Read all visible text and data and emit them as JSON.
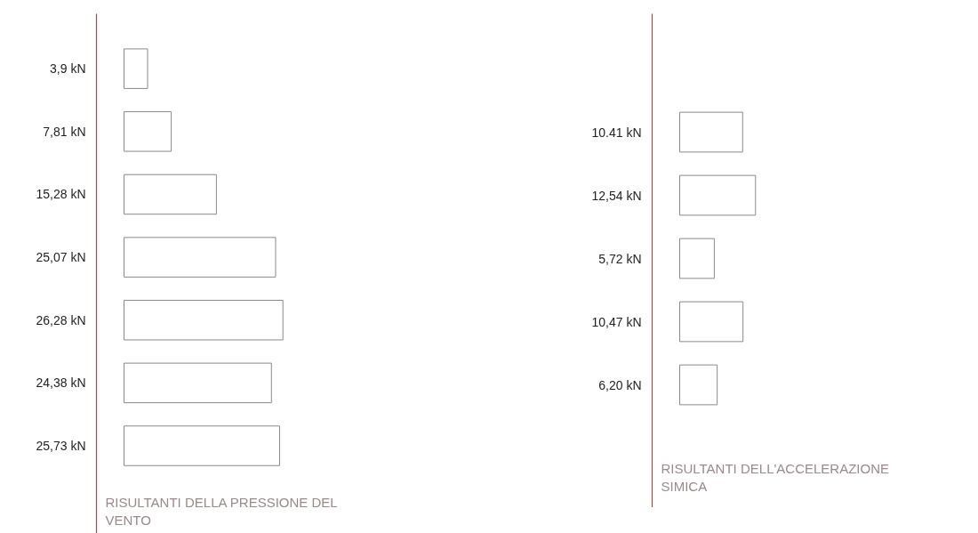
{
  "chart_data": [
    {
      "type": "bar",
      "orientation": "horizontal",
      "title": "RISULTANTI DELLA PRESSIONE DEL VENTO",
      "categories": [
        null,
        null,
        null,
        null,
        null,
        null,
        null
      ],
      "values": [
        3.9,
        7.81,
        15.28,
        25.07,
        26.28,
        24.38,
        25.73
      ],
      "value_labels": [
        "3,9 kN",
        "7,81 kN",
        "15,28 kN",
        "25,07 kN",
        "26,28 kN",
        "24,38 kN",
        "25,73 kN"
      ],
      "color": "#ffffff"
    },
    {
      "type": "bar",
      "orientation": "horizontal",
      "title": "RISULTANTI DELL'ACCELERAZIONE SIMICA",
      "categories": [
        null,
        null,
        null,
        null,
        null
      ],
      "values": [
        10.41,
        12.54,
        5.72,
        10.47,
        6.2
      ],
      "value_labels": [
        "10.41 kN",
        "12,54 kN",
        "5,72 kN",
        "10,47 kN",
        "6,20 kN"
      ],
      "color": "#ffffff"
    }
  ]
}
